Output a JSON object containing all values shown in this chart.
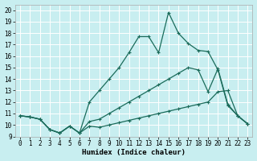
{
  "xlabel": "Humidex (Indice chaleur)",
  "bg_color": "#c8eef0",
  "grid_color": "#ffffff",
  "line_color": "#1a6b5a",
  "xlim": [
    -0.5,
    23.5
  ],
  "ylim": [
    9,
    20.5
  ],
  "xticks": [
    0,
    1,
    2,
    3,
    4,
    5,
    6,
    7,
    8,
    9,
    10,
    11,
    12,
    13,
    14,
    15,
    16,
    17,
    18,
    19,
    20,
    21,
    22,
    23
  ],
  "yticks": [
    9,
    10,
    11,
    12,
    13,
    14,
    15,
    16,
    17,
    18,
    19,
    20
  ],
  "line1_x": [
    0,
    1,
    2,
    3,
    4,
    5,
    6,
    7,
    8,
    9,
    10,
    11,
    12,
    13,
    14,
    15,
    16,
    17,
    18,
    19,
    20,
    21,
    22,
    23
  ],
  "line1_y": [
    10.8,
    10.7,
    10.5,
    9.6,
    9.3,
    9.9,
    9.3,
    9.9,
    9.8,
    10.0,
    10.2,
    10.4,
    10.6,
    10.8,
    11.0,
    11.2,
    11.4,
    11.6,
    11.8,
    12.0,
    12.9,
    13.0,
    10.8,
    10.1
  ],
  "line2_x": [
    0,
    1,
    2,
    3,
    4,
    5,
    6,
    7,
    8,
    9,
    10,
    11,
    12,
    13,
    14,
    15,
    16,
    17,
    18,
    19,
    20,
    21,
    22,
    23
  ],
  "line2_y": [
    10.8,
    10.7,
    10.5,
    9.6,
    9.3,
    9.9,
    9.3,
    10.3,
    10.5,
    11.0,
    11.5,
    12.0,
    12.5,
    13.0,
    13.5,
    14.0,
    14.5,
    15.0,
    14.8,
    12.9,
    14.9,
    11.8,
    10.8,
    10.1
  ],
  "line3_x": [
    0,
    1,
    2,
    3,
    4,
    5,
    6,
    7,
    8,
    9,
    10,
    11,
    12,
    13,
    14,
    15,
    16,
    17,
    18,
    19,
    20,
    21,
    22,
    23
  ],
  "line3_y": [
    10.8,
    10.7,
    10.5,
    9.6,
    9.3,
    9.9,
    9.3,
    12.0,
    13.0,
    14.0,
    15.0,
    16.3,
    17.7,
    17.7,
    16.3,
    19.8,
    18.0,
    17.1,
    16.5,
    16.4,
    14.8,
    11.7,
    10.8,
    10.1
  ],
  "marker": "+",
  "markersize": 3.5,
  "linewidth": 0.9
}
